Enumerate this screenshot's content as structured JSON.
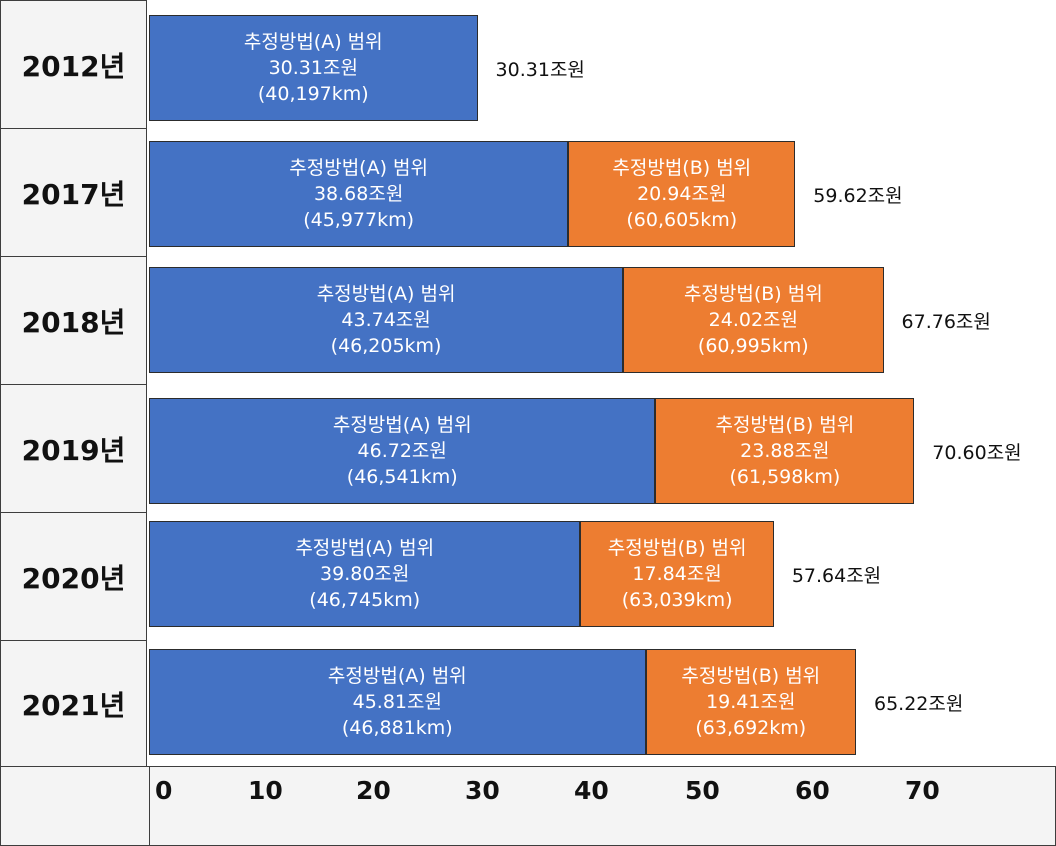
{
  "colors": {
    "series_a": "#4472c4",
    "series_b": "#ed7d31",
    "row_label_bg": "#f4f4f4"
  },
  "chart_data": {
    "type": "bar",
    "orientation": "horizontal",
    "stacked": true,
    "categories": [
      "2012년",
      "2017년",
      "2018년",
      "2019년",
      "2020년",
      "2021년"
    ],
    "series": [
      {
        "name": "추정방법(A) 범위",
        "values": [
          30.31,
          38.68,
          43.74,
          46.72,
          39.8,
          45.81
        ],
        "value_labels": [
          "30.31조원",
          "38.68조원",
          "43.74조원",
          "46.72조원",
          "39.80조원",
          "45.81조원"
        ],
        "extra_labels": [
          "(40,197km)",
          "(45,977km)",
          "(46,205km)",
          "(46,541km)",
          "(46,745km)",
          "(46,881km)"
        ]
      },
      {
        "name": "추정방법(B) 범위",
        "values": [
          null,
          20.94,
          24.02,
          23.88,
          17.84,
          19.41
        ],
        "value_labels": [
          "",
          "20.94조원",
          "24.02조원",
          "23.88조원",
          "17.84조원",
          "19.41조원"
        ],
        "extra_labels": [
          "",
          "(60,605km)",
          "(60,995km)",
          "(61,598km)",
          "(63,039km)",
          "(63,692km)"
        ]
      }
    ],
    "totals": [
      "30.31조원",
      "59.62조원",
      "67.76조원",
      "70.60조원",
      "57.64조원",
      "65.22조원"
    ],
    "x_ticks": [
      "0",
      "10",
      "20",
      "30",
      "40",
      "50",
      "60",
      "70"
    ],
    "xlim": [
      0,
      70
    ],
    "title": "",
    "xlabel": "",
    "ylabel": ""
  }
}
